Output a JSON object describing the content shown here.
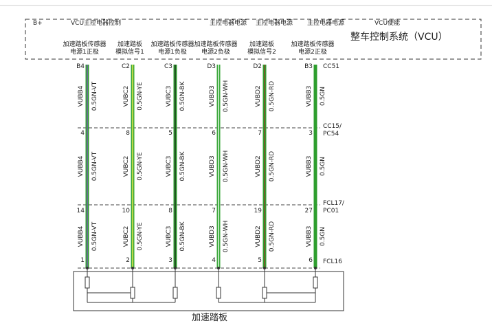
{
  "header": {
    "title": "整车控制系统（VCU）",
    "top_labels": [
      "B+",
      "VCU主控电器控制",
      "主控电器电源",
      "主控电器电源",
      "主控电器电源",
      "VCU使能"
    ],
    "function_labels": [
      [
        "加速踏板传感器",
        "电源1正极"
      ],
      [
        "加速踏板",
        "模拟信号1"
      ],
      [
        "加速踏板传感器",
        "电源1负极"
      ],
      [
        "加速踏板传感器",
        "电源2负极"
      ],
      [
        "加速踏板",
        "模拟信号2"
      ],
      [
        "加速踏板传感器",
        "电源2正极"
      ]
    ]
  },
  "wires": [
    {
      "pins": [
        "B4",
        "4",
        "14",
        "1"
      ],
      "name": "VUBB4",
      "spec": "0.5GN-VT",
      "color": "#2e9e2e",
      "stripe": "#7a5fb0"
    },
    {
      "pins": [
        "C2",
        "8",
        "10",
        "2"
      ],
      "name": "VUBC2",
      "spec": "0.5GN-YE",
      "color": "#3aa83a",
      "stripe": "#e6e84a"
    },
    {
      "pins": [
        "C3",
        "5",
        "8",
        "3"
      ],
      "name": "VUBC3",
      "spec": "0.5GN-BK",
      "color": "#2e9e2e",
      "stripe": "#1f3a1f"
    },
    {
      "pins": [
        "D3",
        "6",
        "7",
        "4"
      ],
      "name": "VUBD3",
      "spec": "0.5GN-WH",
      "color": "#3aa83a",
      "stripe": "#e8f5e8"
    },
    {
      "pins": [
        "D2",
        "7",
        "19",
        "5"
      ],
      "name": "VUBD2",
      "spec": "0.5GN-RD",
      "color": "#2e9e2e",
      "stripe": "#8a4a2a"
    },
    {
      "pins": [
        "B3",
        "3",
        "27",
        "6"
      ],
      "name": "VUBB3",
      "spec": "0.5GN",
      "color": "#2e9e2e",
      "stripe": "#2e9e2e"
    }
  ],
  "connectors": [
    [
      "CC51"
    ],
    [
      "CC15/",
      "PC54"
    ],
    [
      "FCL17/",
      "PC01"
    ],
    [
      "FCL16"
    ]
  ],
  "device": "加速踏板"
}
